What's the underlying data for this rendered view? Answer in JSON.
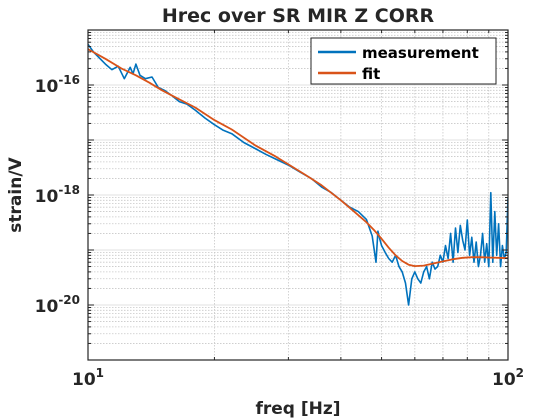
{
  "chart_data": {
    "type": "line",
    "title": "Hrec over SR MIR Z CORR",
    "xlabel": "freq [Hz]",
    "ylabel": "strain/V",
    "xscale": "log",
    "yscale": "log",
    "xlim": [
      10,
      100
    ],
    "ylim": [
      1e-21,
      1e-15
    ],
    "grid": true,
    "legend_position": "top-right",
    "x_ticks": [
      {
        "value": 10,
        "base": "10",
        "exp": "1"
      },
      {
        "value": 100,
        "base": "10",
        "exp": "2"
      }
    ],
    "y_ticks": [
      {
        "value": 1e-20,
        "base": "10",
        "exp": "-20"
      },
      {
        "value": 1e-18,
        "base": "10",
        "exp": "-18"
      },
      {
        "value": 1e-16,
        "base": "10",
        "exp": "-16"
      }
    ],
    "series": [
      {
        "name": "measurement",
        "color": "#0072BD",
        "x": [
          10,
          10.3,
          10.6,
          11.0,
          11.4,
          11.8,
          12.2,
          12.6,
          12.8,
          13.0,
          13.3,
          13.7,
          14.2,
          14.7,
          15.2,
          15.8,
          16.5,
          17.2,
          18.0,
          19.0,
          20.0,
          21.0,
          22.0,
          23.5,
          25.0,
          26.5,
          28.0,
          30.0,
          32.0,
          34.0,
          36.0,
          38.0,
          40.0,
          42.0,
          44.0,
          46.0,
          47.5,
          48.5,
          49.0,
          49.5,
          50.0,
          51.0,
          52.0,
          53.0,
          54.0,
          55.0,
          56.0,
          57.0,
          58.0,
          59.0,
          60.0,
          61.0,
          62.0,
          63.0,
          64.0,
          65.0,
          66.0,
          67.0,
          68.0,
          69.0,
          70.0,
          71.0,
          72.0,
          73.0,
          74.0,
          75.0,
          76.0,
          77.0,
          78.0,
          79.0,
          80.0,
          81.0,
          82.0,
          83.0,
          84.0,
          85.0,
          86.0,
          87.0,
          88.0,
          89.0,
          90.0,
          91.0,
          92.0,
          93.0,
          94.0,
          95.0,
          96.0,
          97.0,
          98.0,
          99.0,
          100.0
        ],
        "y": [
          5.5e-16,
          4e-16,
          3.2e-16,
          2.4e-16,
          1.9e-16,
          2.2e-16,
          1.3e-16,
          2.1e-16,
          1.6e-16,
          2.4e-16,
          1.5e-16,
          1.3e-16,
          1.4e-16,
          9e-17,
          8e-17,
          6.5e-17,
          5e-17,
          4.5e-17,
          3.5e-17,
          2.5e-17,
          1.9e-17,
          1.5e-17,
          1.3e-17,
          9e-18,
          7e-18,
          5.5e-18,
          4.5e-18,
          3.5e-18,
          2.6e-18,
          2e-18,
          1.4e-18,
          1.1e-18,
          8e-19,
          6e-19,
          5e-19,
          3.6e-19,
          1.8e-19,
          6e-20,
          2.2e-19,
          1.6e-19,
          1.2e-19,
          9e-20,
          7e-20,
          6e-20,
          8e-20,
          5e-20,
          4e-20,
          2.5e-20,
          1e-20,
          3e-20,
          4e-20,
          3e-20,
          2.5e-20,
          4e-20,
          5e-20,
          3e-20,
          6e-20,
          4.5e-20,
          5e-20,
          8e-20,
          6e-20,
          1.2e-19,
          7e-20,
          2e-19,
          6e-20,
          2.5e-19,
          9e-20,
          2.8e-19,
          1.5e-19,
          1e-19,
          3.5e-19,
          8e-20,
          1.7e-19,
          6e-20,
          1.4e-19,
          5e-20,
          8e-20,
          2e-19,
          6e-20,
          1.3e-19,
          5e-20,
          1.1e-18,
          6e-20,
          5e-19,
          8e-20,
          3e-19,
          5e-20,
          1.2e-19,
          7e-20,
          9e-20,
          9e-19
        ]
      },
      {
        "name": "fit",
        "color": "#D95319",
        "x": [
          10,
          11,
          12,
          13,
          14,
          15,
          16,
          18,
          20,
          22,
          25,
          28,
          30,
          33,
          36,
          40,
          43,
          46,
          48,
          50,
          52,
          54,
          56,
          58,
          60,
          63,
          66,
          70,
          74,
          78,
          82,
          86,
          90,
          95,
          100
        ],
        "y": [
          4.5e-16,
          3e-16,
          2e-16,
          1.5e-16,
          1.1e-16,
          8e-17,
          6.2e-17,
          3.9e-17,
          2.3e-17,
          1.55e-17,
          8e-18,
          5e-18,
          3.6e-18,
          2.3e-18,
          1.5e-18,
          8e-19,
          5e-19,
          3.2e-19,
          2.3e-19,
          1.6e-19,
          1.1e-19,
          8e-20,
          6.3e-20,
          5.4e-20,
          5.1e-20,
          5.2e-20,
          5.6e-20,
          6.2e-20,
          6.8e-20,
          7.2e-20,
          7.4e-20,
          7.4e-20,
          7.3e-20,
          7.2e-20,
          7.1e-20
        ]
      }
    ]
  }
}
